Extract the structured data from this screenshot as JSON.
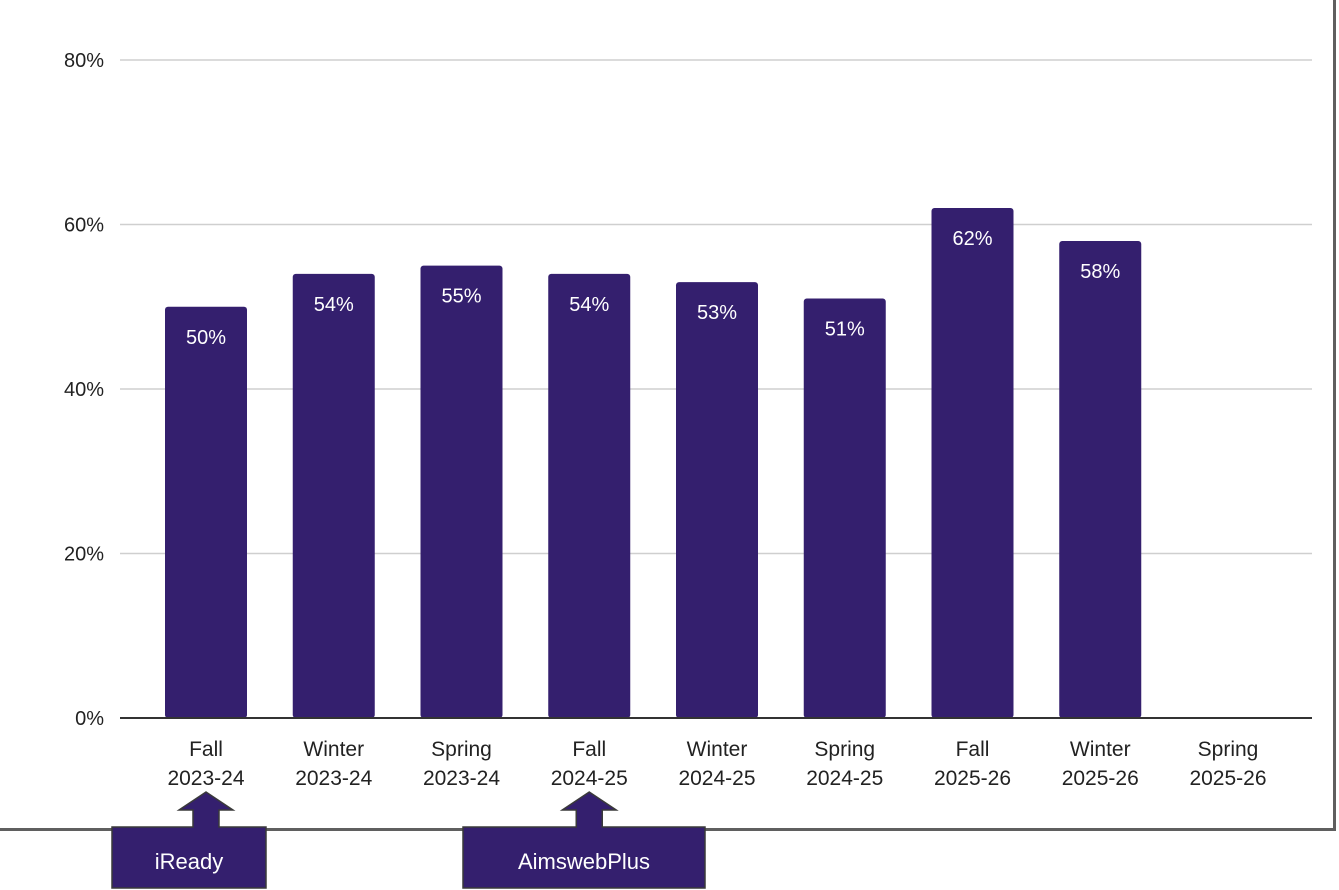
{
  "chart_data": {
    "type": "bar",
    "categories": [
      [
        "Fall",
        "2023-24"
      ],
      [
        "Winter",
        "2023-24"
      ],
      [
        "Spring",
        "2023-24"
      ],
      [
        "Fall",
        "2024-25"
      ],
      [
        "Winter",
        "2024-25"
      ],
      [
        "Spring",
        "2024-25"
      ],
      [
        "Fall",
        "2025-26"
      ],
      [
        "Winter",
        "2025-26"
      ],
      [
        "Spring",
        "2025-26"
      ]
    ],
    "values": [
      50,
      54,
      55,
      54,
      53,
      51,
      62,
      58,
      null
    ],
    "data_labels": [
      "50%",
      "54%",
      "55%",
      "54%",
      "53%",
      "51%",
      "62%",
      "58%",
      ""
    ],
    "yticks": [
      "0%",
      "20%",
      "40%",
      "60%",
      "80%"
    ],
    "ylim": [
      0,
      80
    ],
    "grid": true,
    "bar_color": "#341f6e"
  },
  "annotations": [
    {
      "label": "iReady",
      "category_index": 0
    },
    {
      "label": "AimswebPlus",
      "category_index": 3
    }
  ]
}
